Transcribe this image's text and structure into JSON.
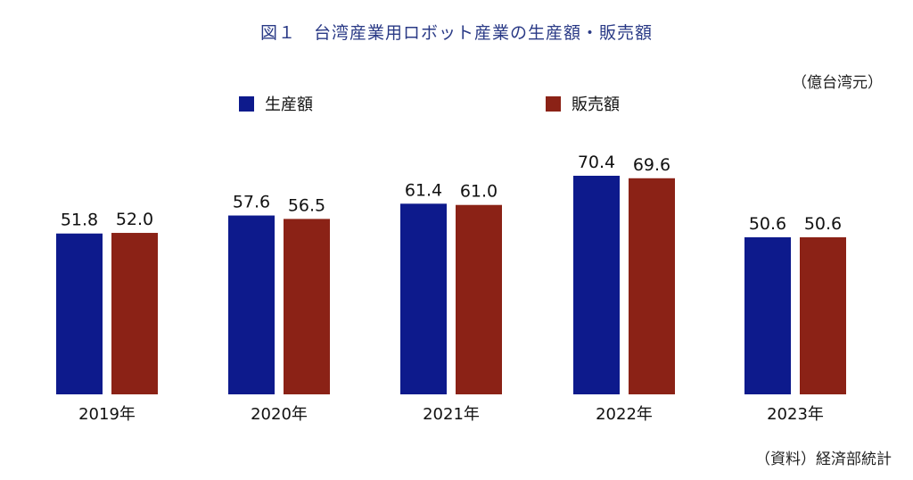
{
  "title": "図１　台湾産業用ロボット産業の生産額・販売額",
  "unit": "（億台湾元）",
  "source": "（資料）経済部統計",
  "colors": {
    "production": "#0d1a8c",
    "sales": "#8b2216"
  },
  "chart_data": {
    "type": "bar",
    "title": "図１　台湾産業用ロボット産業の生産額・販売額",
    "categories": [
      "2019年",
      "2020年",
      "2021年",
      "2022年",
      "2023年"
    ],
    "series": [
      {
        "name": "生産額",
        "values": [
          51.8,
          57.6,
          61.4,
          70.4,
          50.6
        ],
        "labels": [
          "51.8",
          "57.6",
          "61.4",
          "70.4",
          "50.6"
        ]
      },
      {
        "name": "販売額",
        "values": [
          52.0,
          56.5,
          61.0,
          69.6,
          50.6
        ],
        "labels": [
          "52.0",
          "56.5",
          "61.0",
          "69.6",
          "50.6"
        ]
      }
    ],
    "ylabel": "（億台湾元）",
    "ylim": [
      0,
      70.4
    ],
    "grid": false,
    "legend": "top"
  }
}
